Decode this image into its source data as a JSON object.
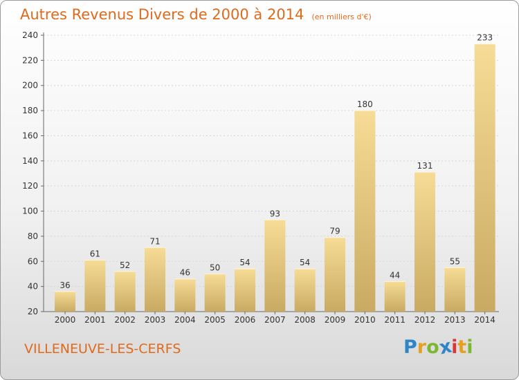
{
  "header": {
    "title": "Autres Revenus Divers de 2000 à 2014",
    "subtitle": "(en milliers d'€)"
  },
  "footer": {
    "commune": "VILLENEUVE-LES-CERFS",
    "logo_letters": [
      "P",
      "r",
      "o",
      "x",
      "i",
      "t",
      "i"
    ],
    "logo_colors": [
      "#2e86c8",
      "#e4a020",
      "#7cb82f",
      "#2e86c8",
      "#d83838",
      "#e4a020",
      "#7cb82f"
    ]
  },
  "colors": {
    "accent": "#e06a1c",
    "bar_light": "#f6dc96",
    "bar_dark": "#c9aa62"
  },
  "chart_data": {
    "type": "bar",
    "categories": [
      "2000",
      "2001",
      "2002",
      "2003",
      "2004",
      "2005",
      "2006",
      "2007",
      "2008",
      "2009",
      "2010",
      "2011",
      "2012",
      "2013",
      "2014"
    ],
    "values": [
      36,
      61,
      52,
      71,
      46,
      50,
      54,
      93,
      54,
      79,
      180,
      44,
      131,
      55,
      233
    ],
    "data_labels": [
      "36",
      "61",
      "52",
      "71",
      "46",
      "50",
      "54",
      "93",
      "54",
      "79",
      "180",
      "44",
      "131",
      "55",
      "233"
    ],
    "yticks": [
      20,
      40,
      60,
      80,
      100,
      120,
      140,
      160,
      180,
      200,
      220,
      240
    ],
    "ytick_labels": [
      "20",
      "40",
      "60",
      "80",
      "100",
      "120",
      "140",
      "160",
      "180",
      "200",
      "220",
      "240"
    ],
    "ylim": [
      20,
      240
    ],
    "grid": true,
    "legend": "none"
  }
}
